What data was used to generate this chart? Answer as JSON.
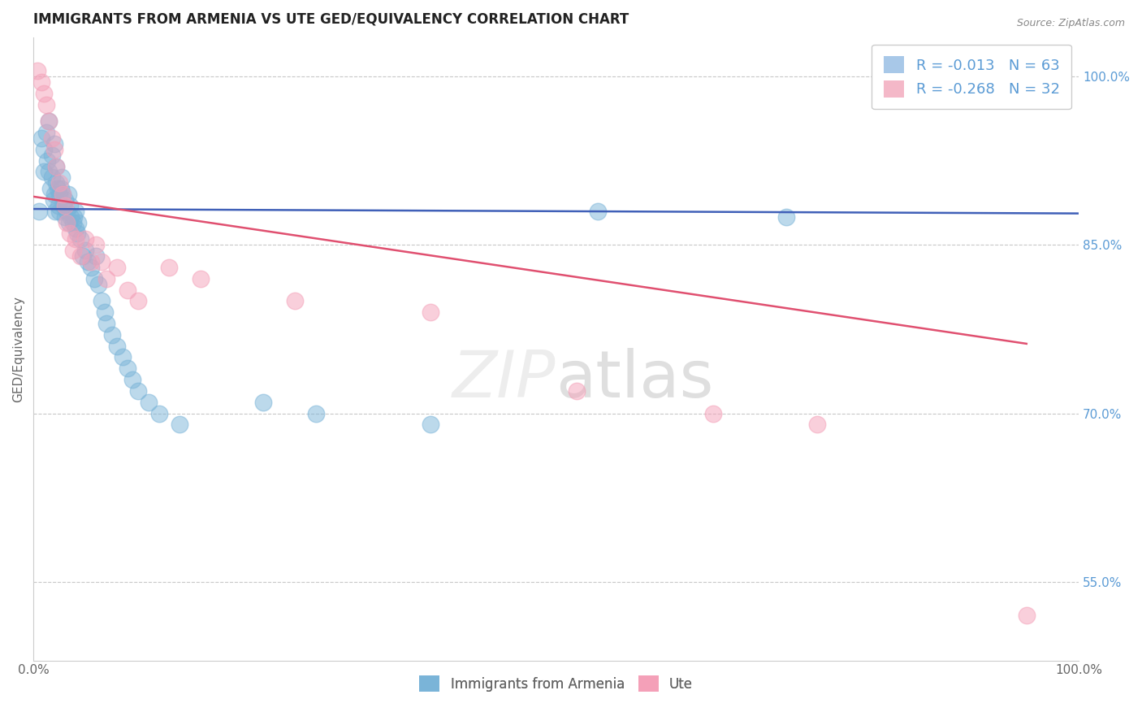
{
  "title": "IMMIGRANTS FROM ARMENIA VS UTE GED/EQUIVALENCY CORRELATION CHART",
  "source": "Source: ZipAtlas.com",
  "xlabel": "",
  "ylabel": "GED/Equivalency",
  "xlim": [
    0.0,
    1.0
  ],
  "ylim": [
    0.48,
    1.035
  ],
  "x_tick_labels": [
    "0.0%",
    "100.0%"
  ],
  "y_tick_labels": [
    "55.0%",
    "70.0%",
    "85.0%",
    "100.0%"
  ],
  "y_tick_vals": [
    0.55,
    0.7,
    0.85,
    1.0
  ],
  "legend_entries": [
    {
      "label": "R = -0.013   N = 63",
      "color": "#a8c8e8"
    },
    {
      "label": "R = -0.268   N = 32",
      "color": "#f4b8c8"
    }
  ],
  "bottom_legend": [
    "Immigrants from Armenia",
    "Ute"
  ],
  "blue_line": {
    "x0": 0.0,
    "y0": 0.882,
    "x1": 1.0,
    "y1": 0.878
  },
  "pink_line": {
    "x0": 0.0,
    "y0": 0.893,
    "x1": 0.95,
    "y1": 0.762
  },
  "blue_scatter_x": [
    0.005,
    0.008,
    0.01,
    0.01,
    0.012,
    0.013,
    0.015,
    0.015,
    0.016,
    0.018,
    0.018,
    0.019,
    0.02,
    0.02,
    0.021,
    0.022,
    0.022,
    0.023,
    0.024,
    0.025,
    0.025,
    0.026,
    0.027,
    0.028,
    0.029,
    0.03,
    0.03,
    0.032,
    0.033,
    0.034,
    0.035,
    0.036,
    0.038,
    0.039,
    0.04,
    0.04,
    0.042,
    0.043,
    0.045,
    0.047,
    0.05,
    0.052,
    0.055,
    0.058,
    0.06,
    0.062,
    0.065,
    0.068,
    0.07,
    0.075,
    0.08,
    0.085,
    0.09,
    0.095,
    0.1,
    0.11,
    0.12,
    0.14,
    0.22,
    0.27,
    0.38,
    0.54,
    0.72
  ],
  "blue_scatter_y": [
    0.88,
    0.945,
    0.935,
    0.915,
    0.95,
    0.925,
    0.915,
    0.96,
    0.9,
    0.93,
    0.91,
    0.89,
    0.94,
    0.895,
    0.88,
    0.92,
    0.905,
    0.9,
    0.885,
    0.895,
    0.88,
    0.9,
    0.91,
    0.895,
    0.885,
    0.875,
    0.89,
    0.88,
    0.895,
    0.87,
    0.885,
    0.875,
    0.87,
    0.875,
    0.865,
    0.88,
    0.86,
    0.87,
    0.855,
    0.84,
    0.845,
    0.835,
    0.83,
    0.82,
    0.84,
    0.815,
    0.8,
    0.79,
    0.78,
    0.77,
    0.76,
    0.75,
    0.74,
    0.73,
    0.72,
    0.71,
    0.7,
    0.69,
    0.71,
    0.7,
    0.69,
    0.88,
    0.875
  ],
  "pink_scatter_x": [
    0.004,
    0.008,
    0.01,
    0.012,
    0.015,
    0.018,
    0.02,
    0.022,
    0.025,
    0.028,
    0.03,
    0.032,
    0.035,
    0.038,
    0.04,
    0.045,
    0.05,
    0.055,
    0.06,
    0.065,
    0.07,
    0.08,
    0.09,
    0.1,
    0.13,
    0.16,
    0.25,
    0.38,
    0.52,
    0.65,
    0.75,
    0.95
  ],
  "pink_scatter_y": [
    1.005,
    0.995,
    0.985,
    0.975,
    0.96,
    0.945,
    0.935,
    0.92,
    0.905,
    0.895,
    0.885,
    0.87,
    0.86,
    0.845,
    0.855,
    0.84,
    0.855,
    0.835,
    0.85,
    0.835,
    0.82,
    0.83,
    0.81,
    0.8,
    0.83,
    0.82,
    0.8,
    0.79,
    0.72,
    0.7,
    0.69,
    0.52
  ],
  "grid_color": "#c8c8c8",
  "blue_color": "#7ab4d8",
  "pink_color": "#f4a0b8",
  "blue_line_color": "#4060b8",
  "pink_line_color": "#e05070",
  "background_color": "#ffffff",
  "title_fontsize": 12,
  "axis_label_fontsize": 11
}
